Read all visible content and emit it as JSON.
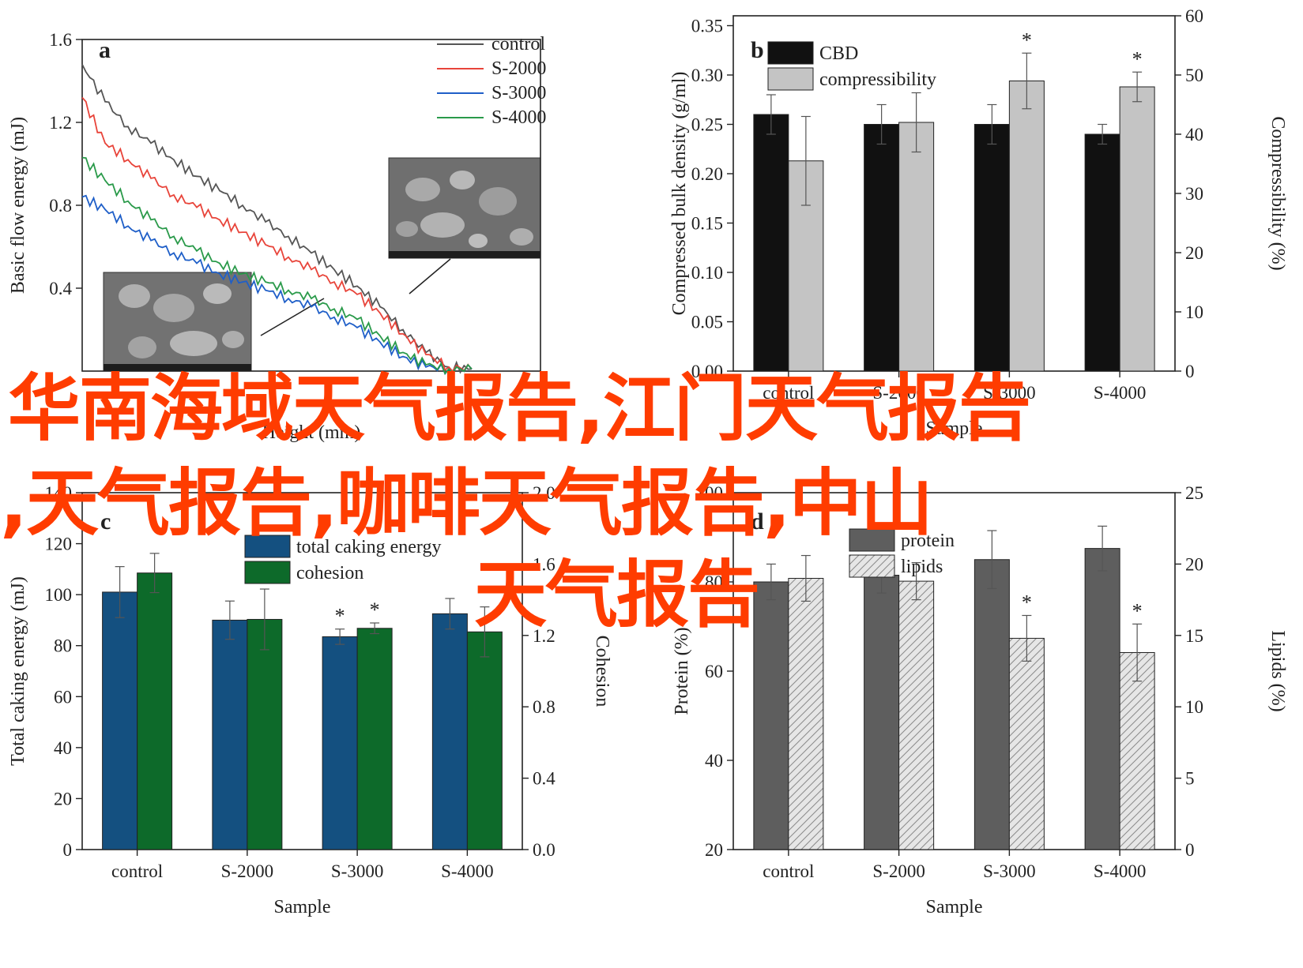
{
  "overlay": {
    "line1": "华南海域天气报告,江门天气报告",
    "line2": ",天气报告,咖啡天气报告,中山",
    "line3": "天气报告",
    "color": "#ff3c00"
  },
  "chart_data": [
    {
      "panel": "a",
      "type": "line",
      "title": "",
      "xlabel": "Height (mm)",
      "ylabel": "Basic flow energy (mJ)",
      "xlim": [
        0,
        5
      ],
      "ylim": [
        0,
        1.6
      ],
      "yticks": [
        "0.4",
        "0.8",
        "1.2",
        "1.6"
      ],
      "x": [
        0.0,
        0.25,
        0.5,
        0.75,
        1.0,
        1.25,
        1.5,
        1.75,
        2.0,
        2.25,
        2.5,
        2.75,
        3.0,
        3.25,
        3.5,
        3.75,
        4.0,
        4.25
      ],
      "series": [
        {
          "name": "control",
          "color": "#555555",
          "values": [
            1.48,
            1.3,
            1.18,
            1.1,
            1.02,
            0.94,
            0.87,
            0.8,
            0.72,
            0.65,
            0.57,
            0.49,
            0.41,
            0.31,
            0.2,
            0.09,
            0.02,
            0.01
          ]
        },
        {
          "name": "S-2000",
          "color": "#e8443a",
          "values": [
            1.32,
            1.1,
            1.02,
            0.93,
            0.85,
            0.79,
            0.73,
            0.67,
            0.61,
            0.55,
            0.49,
            0.43,
            0.37,
            0.28,
            0.18,
            0.08,
            0.02,
            0.01
          ]
        },
        {
          "name": "S-3000",
          "color": "#1f5fc8",
          "values": [
            0.84,
            0.78,
            0.7,
            0.63,
            0.57,
            0.52,
            0.47,
            0.43,
            0.39,
            0.35,
            0.31,
            0.26,
            0.21,
            0.14,
            0.07,
            0.02,
            0.01,
            0.01
          ]
        },
        {
          "name": "S-4000",
          "color": "#2a9a4a",
          "values": [
            1.03,
            0.92,
            0.82,
            0.73,
            0.65,
            0.58,
            0.52,
            0.47,
            0.43,
            0.39,
            0.35,
            0.3,
            0.25,
            0.17,
            0.09,
            0.03,
            0.01,
            0.01
          ]
        }
      ],
      "legend": "top-right"
    },
    {
      "panel": "b",
      "type": "bar",
      "xlabel": "Sample",
      "ylabel": "Compressed bulk density (g/ml)",
      "y2label": "Compressibility (%)",
      "categories": [
        "control",
        "S-2000",
        "S-3000",
        "S-4000"
      ],
      "ylim": [
        0,
        0.36
      ],
      "yticks": [
        "0.00",
        "0.05",
        "0.10",
        "0.15",
        "0.20",
        "0.25",
        "0.30",
        "0.35"
      ],
      "y2lim": [
        0,
        60
      ],
      "y2ticks": [
        "0",
        "10",
        "20",
        "30",
        "40",
        "50",
        "60"
      ],
      "series": [
        {
          "name": "CBD",
          "axis": "left",
          "color": "#111111",
          "values": [
            0.26,
            0.25,
            0.25,
            0.24
          ],
          "errors": [
            0.02,
            0.02,
            0.02,
            0.01
          ]
        },
        {
          "name": "compressibility",
          "axis": "right",
          "color": "#c4c4c4",
          "values": [
            35.5,
            42,
            49,
            48
          ],
          "errors": [
            7.5,
            5,
            4.7,
            2.5
          ]
        }
      ],
      "significance": [
        {
          "category": "S-3000",
          "series": "compressibility",
          "mark": "*"
        },
        {
          "category": "S-4000",
          "series": "compressibility",
          "mark": "*"
        }
      ],
      "legend": "top-left"
    },
    {
      "panel": "c",
      "type": "bar",
      "xlabel": "Sample",
      "ylabel": "Total caking energy (mJ)",
      "y2label": "Cohesion",
      "categories": [
        "control",
        "S-2000",
        "S-3000",
        "S-4000"
      ],
      "ylim": [
        0,
        140
      ],
      "yticks": [
        "0",
        "20",
        "40",
        "60",
        "80",
        "100",
        "120",
        "140"
      ],
      "y2lim": [
        0,
        2.0
      ],
      "y2ticks": [
        "0.0",
        "0.4",
        "0.8",
        "1.2",
        "1.6",
        "2.0"
      ],
      "series": [
        {
          "name": "total caking energy",
          "axis": "left",
          "color": "#145080",
          "values": [
            101,
            90,
            83.5,
            92.5
          ],
          "errors": [
            10,
            7.5,
            3,
            6
          ]
        },
        {
          "name": "cohesion",
          "axis": "right",
          "color": "#0d6a2a",
          "values": [
            1.55,
            1.29,
            1.24,
            1.22
          ],
          "errors": [
            0.11,
            0.17,
            0.03,
            0.14
          ]
        }
      ],
      "significance": [
        {
          "category": "S-3000",
          "series": "total caking energy",
          "mark": "*"
        },
        {
          "category": "S-3000",
          "series": "cohesion",
          "mark": "*"
        }
      ],
      "legend": "top-left"
    },
    {
      "panel": "d",
      "type": "bar",
      "xlabel": "Sample",
      "ylabel": "Protein (%)",
      "y2label": "Lipids (%)",
      "categories": [
        "control",
        "S-2000",
        "S-3000",
        "S-4000"
      ],
      "ylim": [
        20,
        100
      ],
      "yticks": [
        "20",
        "40",
        "60",
        "80",
        "100"
      ],
      "y2lim": [
        0,
        25
      ],
      "y2ticks": [
        "0",
        "5",
        "10",
        "15",
        "20",
        "25"
      ],
      "series": [
        {
          "name": "protein",
          "axis": "left",
          "color": "#5e5e5e",
          "values": [
            80,
            81.5,
            85,
            87.5
          ],
          "errors": [
            4,
            4,
            6.5,
            5
          ]
        },
        {
          "name": "lipids",
          "axis": "right",
          "color": "#dcdcdc",
          "pattern": "hatch",
          "values": [
            19,
            18.8,
            14.8,
            13.8
          ],
          "errors": [
            1.6,
            1.3,
            1.6,
            2
          ]
        }
      ],
      "significance": [
        {
          "category": "S-3000",
          "series": "lipids",
          "mark": "*"
        },
        {
          "category": "S-4000",
          "series": "lipids",
          "mark": "*"
        }
      ],
      "legend": "top-left"
    }
  ]
}
